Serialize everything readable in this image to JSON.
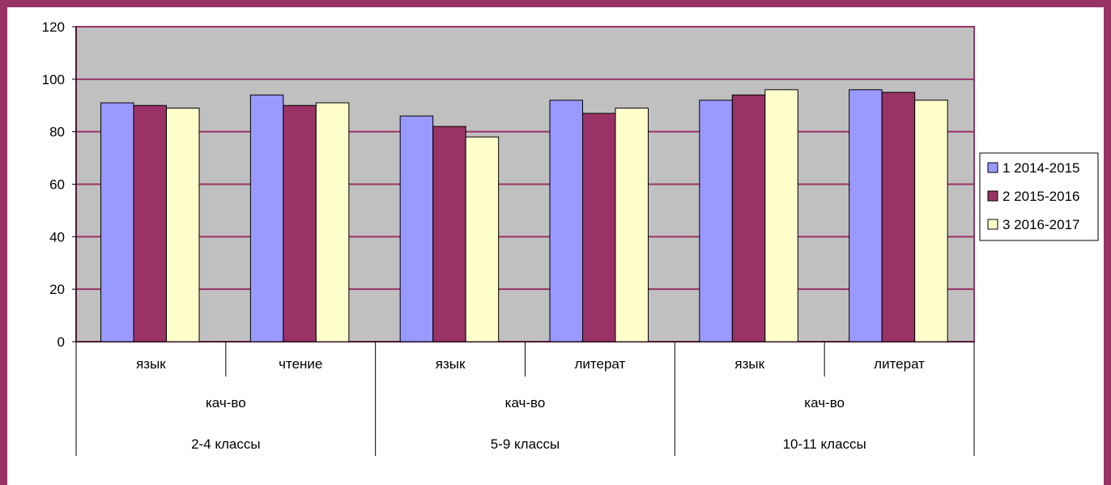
{
  "chart_data": {
    "type": "bar",
    "y_ticks": [
      "0",
      "20",
      "40",
      "60",
      "80",
      "100",
      "120"
    ],
    "ylim": [
      0,
      120
    ],
    "grid": true,
    "legend_position": "right",
    "category_levels": {
      "subjects": [
        "язык",
        "чтение",
        "язык",
        "литерат",
        "язык",
        "литерат"
      ],
      "measures": [
        "кач-во",
        "кач-во",
        "кач-во"
      ],
      "groups": [
        "2-4 классы",
        "5-9 классы",
        "10-11 классы"
      ]
    },
    "series": [
      {
        "name": "1 2014-2015",
        "color": "#9999ff",
        "values": [
          91,
          94,
          86,
          92,
          92,
          96
        ]
      },
      {
        "name": "2 2015-2016",
        "color": "#993366",
        "values": [
          90,
          90,
          82,
          87,
          94,
          95
        ]
      },
      {
        "name": "3 2016-2017",
        "color": "#ffffcc",
        "values": [
          89,
          91,
          78,
          89,
          96,
          92
        ]
      }
    ]
  },
  "colors": {
    "frame": "#993366",
    "plot_background": "#c0c0c0",
    "gridline": "#993366"
  }
}
